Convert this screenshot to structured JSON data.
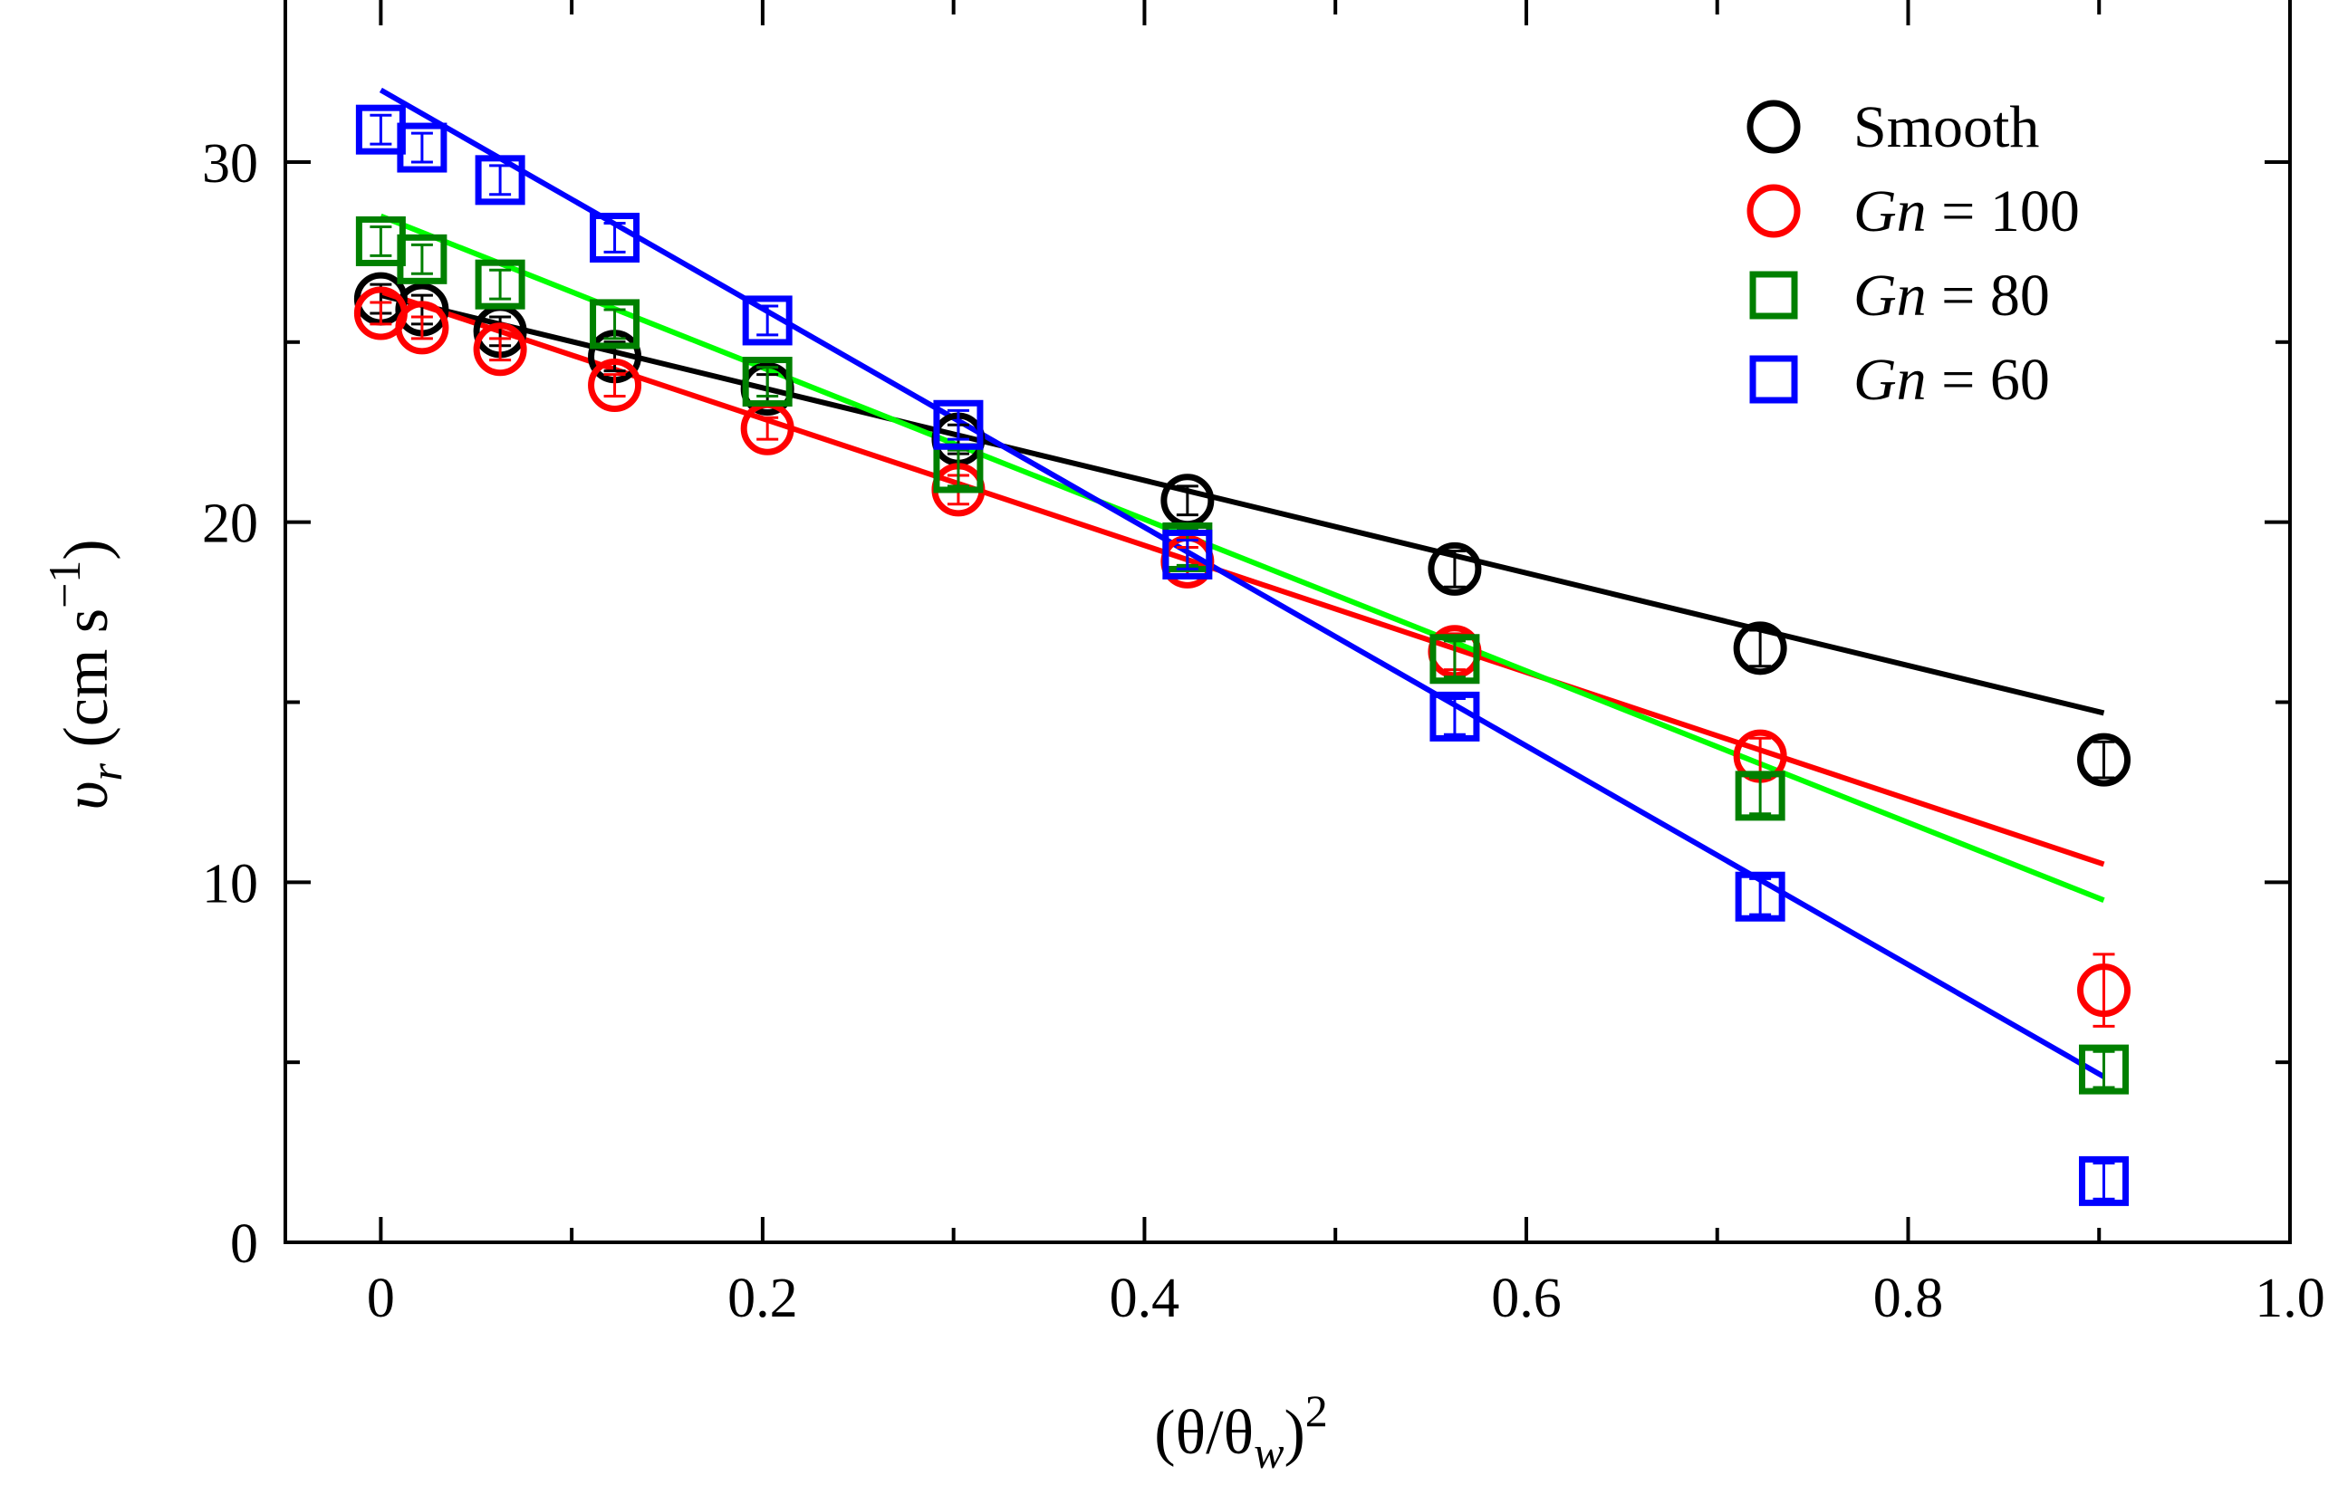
{
  "chart_data": {
    "type": "scatter",
    "xlim": [
      -0.05,
      1.0
    ],
    "ylim": [
      0,
      34.5
    ],
    "xticks": [
      {
        "value": 0,
        "label": "0"
      },
      {
        "value": 0.2,
        "label": "0.2"
      },
      {
        "value": 0.4,
        "label": "0.4"
      },
      {
        "value": 0.6,
        "label": "0.6"
      },
      {
        "value": 0.8,
        "label": "0.8"
      },
      {
        "value": 1.0,
        "label": "1.0"
      }
    ],
    "xminor": [
      0.1,
      0.3,
      0.5,
      0.7,
      0.9
    ],
    "yticks": [
      {
        "value": 0,
        "label": "0"
      },
      {
        "value": 10,
        "label": "10"
      },
      {
        "value": 20,
        "label": "20"
      },
      {
        "value": 30,
        "label": "30"
      }
    ],
    "yminor": [
      5,
      15,
      25
    ],
    "xlabel": {
      "open": "(θ/θ",
      "sub": "w",
      "close": ")",
      "sup": "2"
    },
    "ylabel": {
      "var": "υ",
      "sub": "r",
      "unit": " (cm s",
      "sup": "−1",
      "close": ")"
    },
    "legend": {
      "position": "top-right",
      "entries": [
        {
          "italic": "",
          "text": "Smooth"
        },
        {
          "italic": "Gn",
          "text": " = 100"
        },
        {
          "italic": "Gn",
          "text": " = 80"
        },
        {
          "italic": "Gn",
          "text": " = 60"
        }
      ]
    },
    "series": [
      {
        "name": "Smooth",
        "marker": "circle",
        "color": "#000000",
        "x": [
          0.0,
          0.0216,
          0.0625,
          0.1225,
          0.2025,
          0.3025,
          0.4225,
          0.5625,
          0.7225,
          0.9025
        ],
        "y": [
          26.2,
          25.9,
          25.3,
          24.6,
          23.7,
          22.3,
          20.6,
          18.7,
          16.5,
          13.4
        ],
        "err": [
          0.4,
          0.4,
          0.4,
          0.4,
          0.4,
          0.4,
          0.4,
          0.5,
          0.5,
          0.5
        ],
        "fit": {
          "x": [
            0.0,
            0.9025
          ],
          "y": [
            26.3,
            14.7
          ],
          "color": "#000000"
        }
      },
      {
        "name": "Gn = 100",
        "marker": "circle",
        "color": "#ff0000",
        "x": [
          0.0,
          0.0216,
          0.0625,
          0.1225,
          0.2025,
          0.3025,
          0.4225,
          0.5625,
          0.7225,
          0.9025
        ],
        "y": [
          25.8,
          25.4,
          24.8,
          23.8,
          22.6,
          20.9,
          18.9,
          16.4,
          13.5,
          7.0
        ],
        "err": [
          0.3,
          0.3,
          0.3,
          0.3,
          0.3,
          0.4,
          0.4,
          0.5,
          0.5,
          1.0
        ],
        "fit": {
          "x": [
            0.0,
            0.9025
          ],
          "y": [
            26.4,
            10.5
          ],
          "color": "#ff0000"
        }
      },
      {
        "name": "Gn = 80",
        "marker": "square",
        "color": "#008000",
        "x": [
          0.0,
          0.0216,
          0.0625,
          0.1225,
          0.2025,
          0.3025,
          0.4225,
          0.5625,
          0.7225,
          0.9025
        ],
        "y": [
          27.8,
          27.3,
          26.6,
          25.5,
          23.9,
          21.5,
          19.3,
          16.2,
          12.4,
          4.8
        ],
        "err": [
          0.4,
          0.4,
          0.4,
          0.4,
          0.4,
          0.5,
          0.5,
          0.5,
          0.5,
          0.5
        ],
        "fit": {
          "x": [
            0.0,
            0.9025
          ],
          "y": [
            28.5,
            9.5
          ],
          "color": "#00ff00"
        }
      },
      {
        "name": "Gn = 60",
        "marker": "square",
        "color": "#0000ff",
        "x": [
          0.0,
          0.0216,
          0.0625,
          0.1225,
          0.2025,
          0.3025,
          0.4225,
          0.5625,
          0.7225,
          0.9025
        ],
        "y": [
          30.9,
          30.4,
          29.5,
          27.9,
          25.6,
          22.7,
          19.1,
          14.6,
          9.6,
          1.7
        ],
        "err": [
          0.4,
          0.4,
          0.4,
          0.4,
          0.4,
          0.4,
          0.4,
          0.5,
          0.5,
          0.5
        ],
        "fit": {
          "x": [
            0.0,
            0.9025
          ],
          "y": [
            32.0,
            4.6
          ],
          "color": "#0000ff"
        }
      }
    ]
  }
}
